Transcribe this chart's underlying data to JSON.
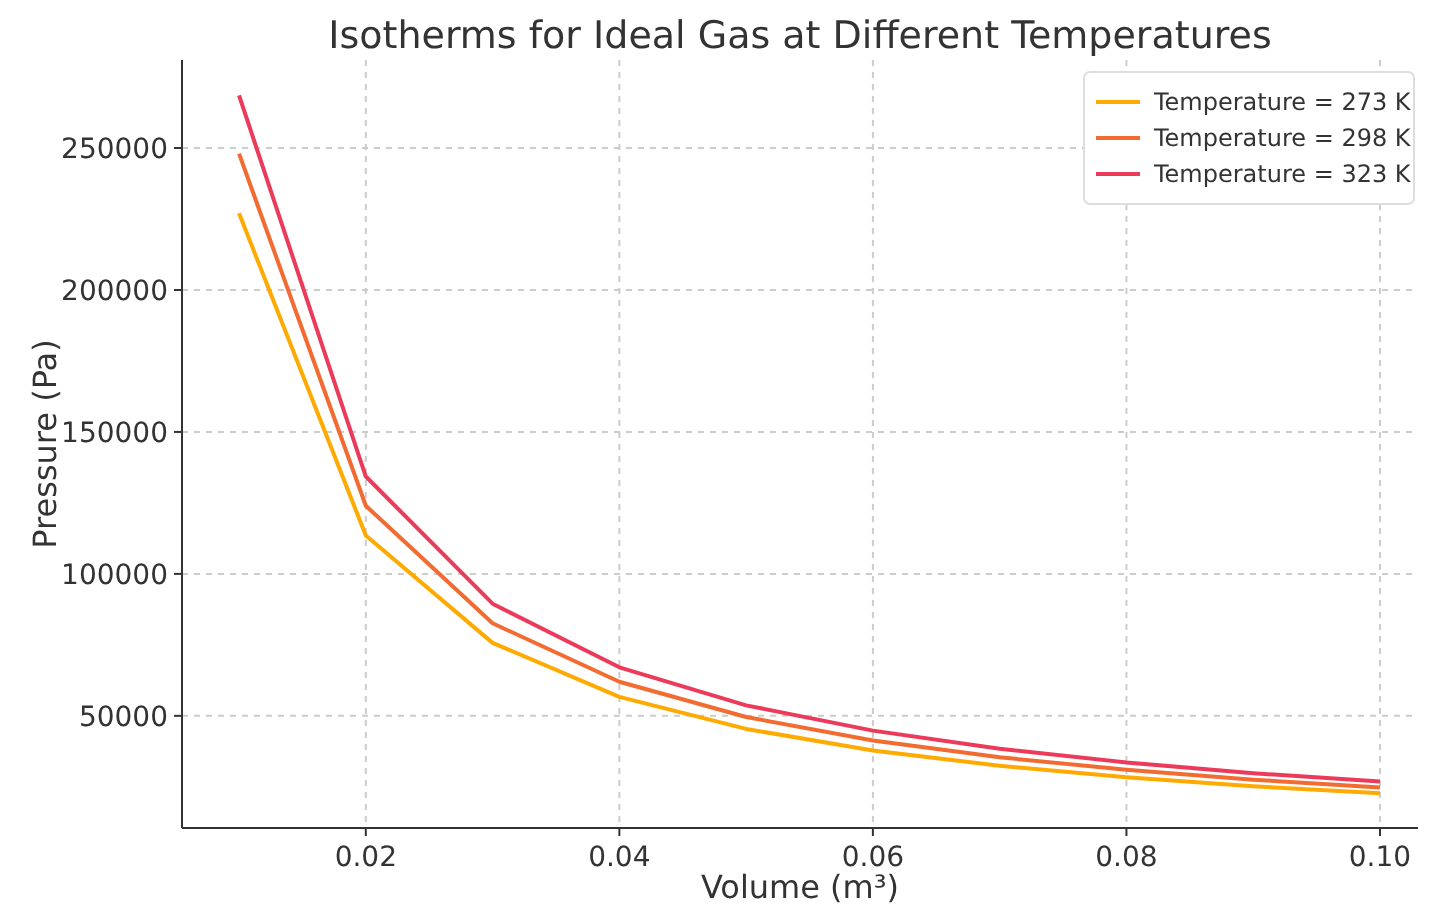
{
  "chart_data": {
    "type": "line",
    "title": "Isotherms for Ideal Gas at Different Temperatures",
    "xlabel": "Volume (m³)",
    "ylabel": "Pressure (Pa)",
    "x": [
      0.01,
      0.02,
      0.03,
      0.04,
      0.05,
      0.06,
      0.07,
      0.08,
      0.09,
      0.1
    ],
    "series": [
      {
        "name": "Temperature = 273 K",
        "color": "#ffaa00",
        "values": [
          227000,
          113500,
          75700,
          56700,
          45400,
          37800,
          32400,
          28400,
          25200,
          22700
        ]
      },
      {
        "name": "Temperature = 298 K",
        "color": "#f26b30",
        "values": [
          248000,
          124000,
          82600,
          62000,
          49600,
          41300,
          35400,
          31000,
          27500,
          24800
        ]
      },
      {
        "name": "Temperature = 323 K",
        "color": "#ec3b5a",
        "values": [
          268500,
          134300,
          89500,
          67100,
          53700,
          44800,
          38400,
          33600,
          29800,
          26900
        ]
      }
    ],
    "xlim": [
      0.0055,
      0.103
    ],
    "ylim": [
      10500,
      281000
    ],
    "xticks": [
      {
        "value": 0.02,
        "label": "0.02"
      },
      {
        "value": 0.04,
        "label": "0.04"
      },
      {
        "value": 0.06,
        "label": "0.06"
      },
      {
        "value": 0.08,
        "label": "0.08"
      },
      {
        "value": 0.1,
        "label": "0.10"
      }
    ],
    "yticks": [
      50000,
      100000,
      150000,
      200000,
      250000
    ],
    "grid": true,
    "legend": "top right",
    "line_style": "solid",
    "marker": "none"
  }
}
